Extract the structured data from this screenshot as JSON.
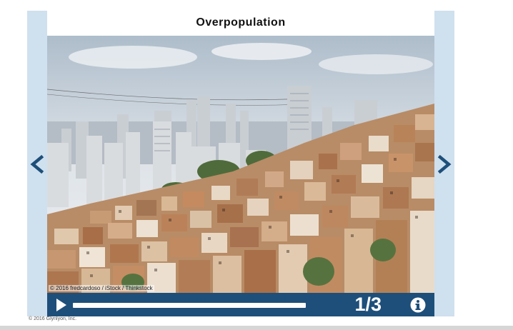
{
  "slide": {
    "title": "Overpopulation",
    "photo_credit": "© 2016 fredcardoso / iStock / Thinkstock",
    "counter": "1/3"
  },
  "footer": {
    "copyright": "© 2016 Glynlyon, Inc."
  },
  "icons": {
    "prev": "chevron-left-icon",
    "next": "chevron-right-icon",
    "play": "play-icon",
    "info": "info-icon"
  },
  "colors": {
    "accent": "#1e4f7a",
    "side_bar": "#cfe0ee"
  }
}
